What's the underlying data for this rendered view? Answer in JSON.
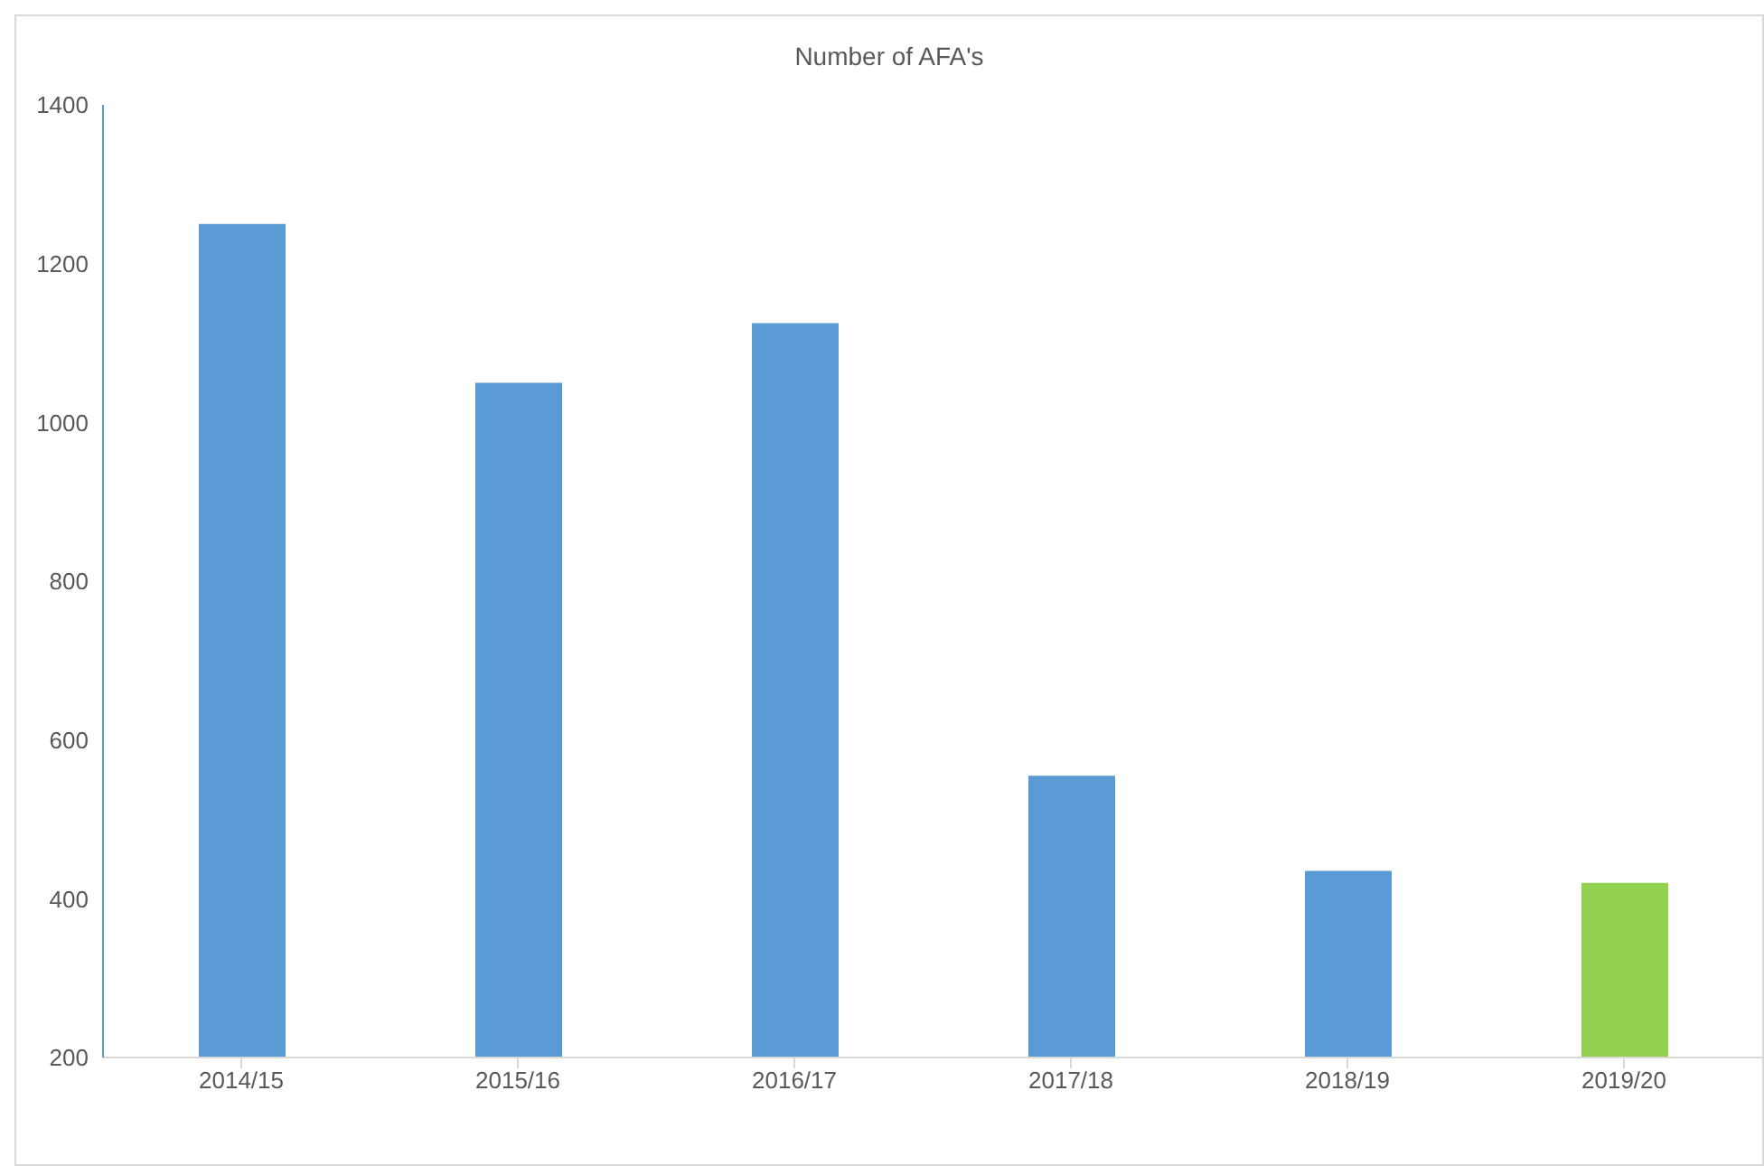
{
  "chart_data": {
    "type": "bar",
    "title": "Number of AFA's",
    "categories": [
      "2014/15",
      "2015/16",
      "2016/17",
      "2017/18",
      "2018/19",
      "2019/20"
    ],
    "values": [
      1250,
      1050,
      1125,
      555,
      435,
      420
    ],
    "colors": [
      "#5b9bd5",
      "#5b9bd5",
      "#5b9bd5",
      "#5b9bd5",
      "#5b9bd5",
      "#92d050"
    ],
    "ylim": [
      200,
      1400
    ],
    "yticks": [
      200,
      400,
      600,
      800,
      1000,
      1200,
      1400
    ],
    "grid": false
  }
}
